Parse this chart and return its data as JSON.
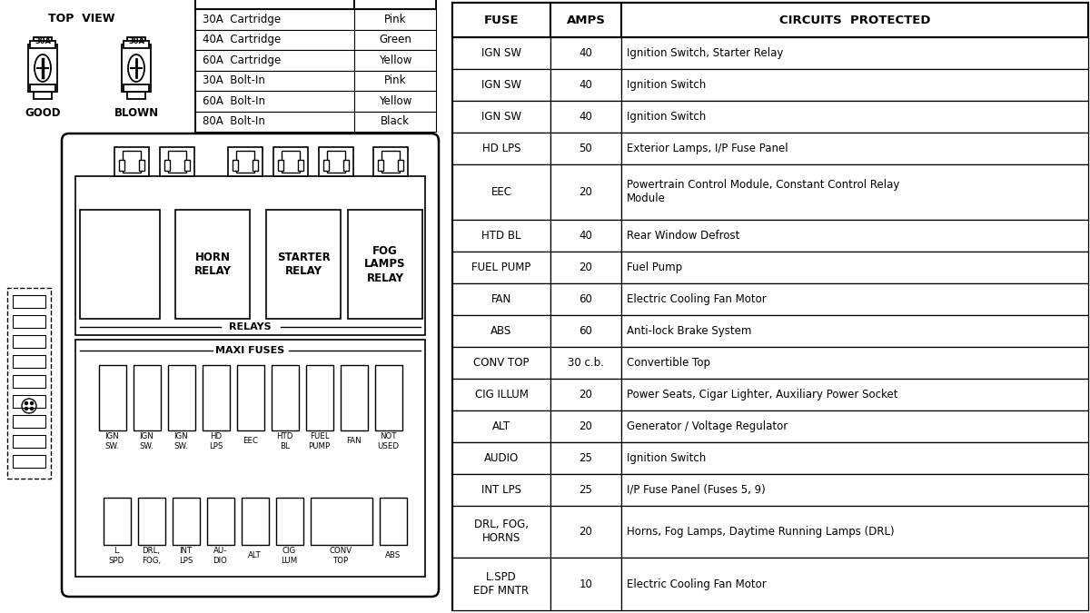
{
  "bg_color": "#ffffff",
  "table_header": [
    "FUSE",
    "AMPS",
    "CIRCUITS  PROTECTED"
  ],
  "table_rows": [
    [
      "IGN SW",
      "40",
      "Ignition Switch, Starter Relay"
    ],
    [
      "IGN SW",
      "40",
      "Ignition Switch"
    ],
    [
      "IGN SW",
      "40",
      "Ignition Switch"
    ],
    [
      "HD LPS",
      "50",
      "Exterior Lamps, I/P Fuse Panel"
    ],
    [
      "EEC",
      "20",
      "Powertrain Control Module, Constant Control Relay\nModule"
    ],
    [
      "HTD BL",
      "40",
      "Rear Window Defrost"
    ],
    [
      "FUEL PUMP",
      "20",
      "Fuel Pump"
    ],
    [
      "FAN",
      "60",
      "Electric Cooling Fan Motor"
    ],
    [
      "ABS",
      "60",
      "Anti-lock Brake System"
    ],
    [
      "CONV TOP",
      "30 c.b.",
      "Convertible Top"
    ],
    [
      "CIG ILLUM",
      "20",
      "Power Seats, Cigar Lighter, Auxiliary Power Socket"
    ],
    [
      "ALT",
      "20",
      "Generator / Voltage Regulator"
    ],
    [
      "AUDIO",
      "25",
      "Ignition Switch"
    ],
    [
      "INT LPS",
      "25",
      "I/P Fuse Panel (Fuses 5, 9)"
    ],
    [
      "DRL, FOG,\nHORNS",
      "20",
      "Horns, Fog Lamps, Daytime Running Lamps (DRL)"
    ],
    [
      "L.SPD\nEDF MNTR",
      "10",
      "Electric Cooling Fan Motor"
    ]
  ],
  "legend_rows": [
    [
      "30A  Cartridge",
      "Pink"
    ],
    [
      "40A  Cartridge",
      "Green"
    ],
    [
      "60A  Cartridge",
      "Yellow"
    ],
    [
      "30A  Bolt-In",
      "Pink"
    ],
    [
      "60A  Bolt-In",
      "Yellow"
    ],
    [
      "80A  Bolt-In",
      "Black"
    ]
  ],
  "relay_labels": [
    "HORN\nRELAY",
    "STARTER\nRELAY",
    "FOG\nLAMPS\nRELAY"
  ],
  "top_fuse_labels": [
    "IGN\nSW.",
    "IGN\nSW.",
    "IGN\nSW.",
    "HD\nLPS",
    "EEC",
    "HTD\nBL",
    "FUEL\nPUMP",
    "FAN",
    "NOT\nUSED"
  ],
  "bot_fuse_labels": [
    "L.\nSPD",
    "DRL,\nFOG,",
    "INT\nLPS",
    "AU-\nDIO",
    "ALT",
    "CIG\nLUM",
    "CONV\nTOP",
    "ABS"
  ]
}
